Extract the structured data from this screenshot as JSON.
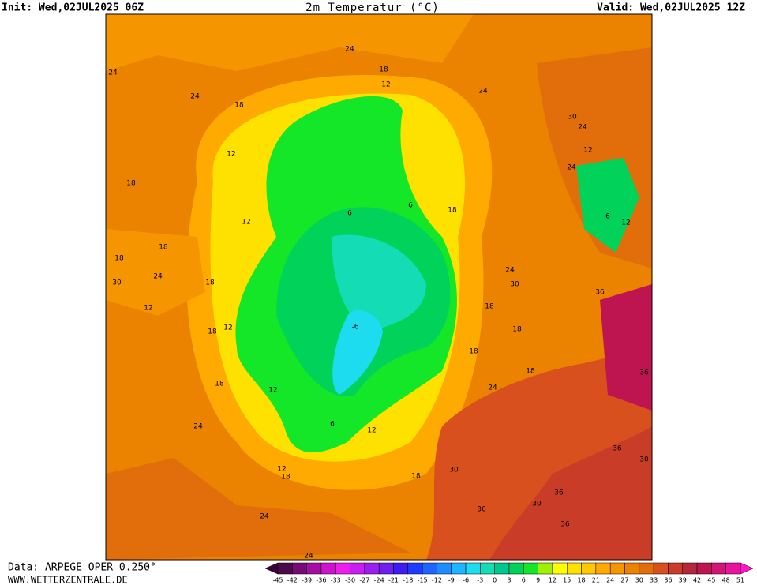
{
  "header": {
    "init": "Init: Wed,02JUL2025 06Z",
    "title": "2m Temperatur (°C)",
    "valid": "Valid: Wed,02JUL2025 12Z"
  },
  "footer": {
    "data": "Data: ARPEGE OPER 0.250°",
    "site": "WWW.WETTERZENTRALE.DE"
  },
  "colorbar": {
    "labels": [
      -45,
      -42,
      -39,
      -36,
      -33,
      -30,
      -27,
      -24,
      -21,
      -18,
      -15,
      -12,
      -9,
      -6,
      -3,
      0,
      3,
      6,
      9,
      12,
      15,
      18,
      21,
      24,
      27,
      30,
      33,
      36,
      39,
      42,
      45,
      48,
      51
    ],
    "colors": [
      "#4b0a4b",
      "#780a78",
      "#a50ca5",
      "#cd14cd",
      "#eb1eeb",
      "#c81ef0",
      "#9b1ef0",
      "#6e1ef0",
      "#3c1ef0",
      "#1e3cff",
      "#1e64ff",
      "#1e8cff",
      "#1eb4ff",
      "#1edcf0",
      "#14dcb4",
      "#00c88c",
      "#00d25a",
      "#14e628",
      "#a0f000",
      "#ffff00",
      "#ffe100",
      "#ffc800",
      "#ffaa00",
      "#f59600",
      "#eb8200",
      "#e16e0a",
      "#d7501e",
      "#c83c28",
      "#b4283c",
      "#be1450",
      "#d21478",
      "#e614a0"
    ],
    "low_color": "#3c003c",
    "high_color": "#ff14c8"
  },
  "map_labels": [
    "24",
    "18",
    "12",
    "24",
    "24",
    "18",
    "12",
    "18",
    "12",
    "18",
    "18",
    "12",
    "18",
    "18",
    "12",
    "24",
    "12",
    "18",
    "24",
    "12",
    "18",
    "6",
    "-6",
    "6",
    "6",
    "18",
    "24",
    "30",
    "24",
    "12",
    "24",
    "6",
    "12",
    "36",
    "36",
    "36",
    "30",
    "36",
    "30",
    "36",
    "36",
    "30",
    "24",
    "18",
    "18",
    "18",
    "24",
    "30",
    "18",
    "18",
    "30",
    "24",
    "12",
    "24"
  ]
}
